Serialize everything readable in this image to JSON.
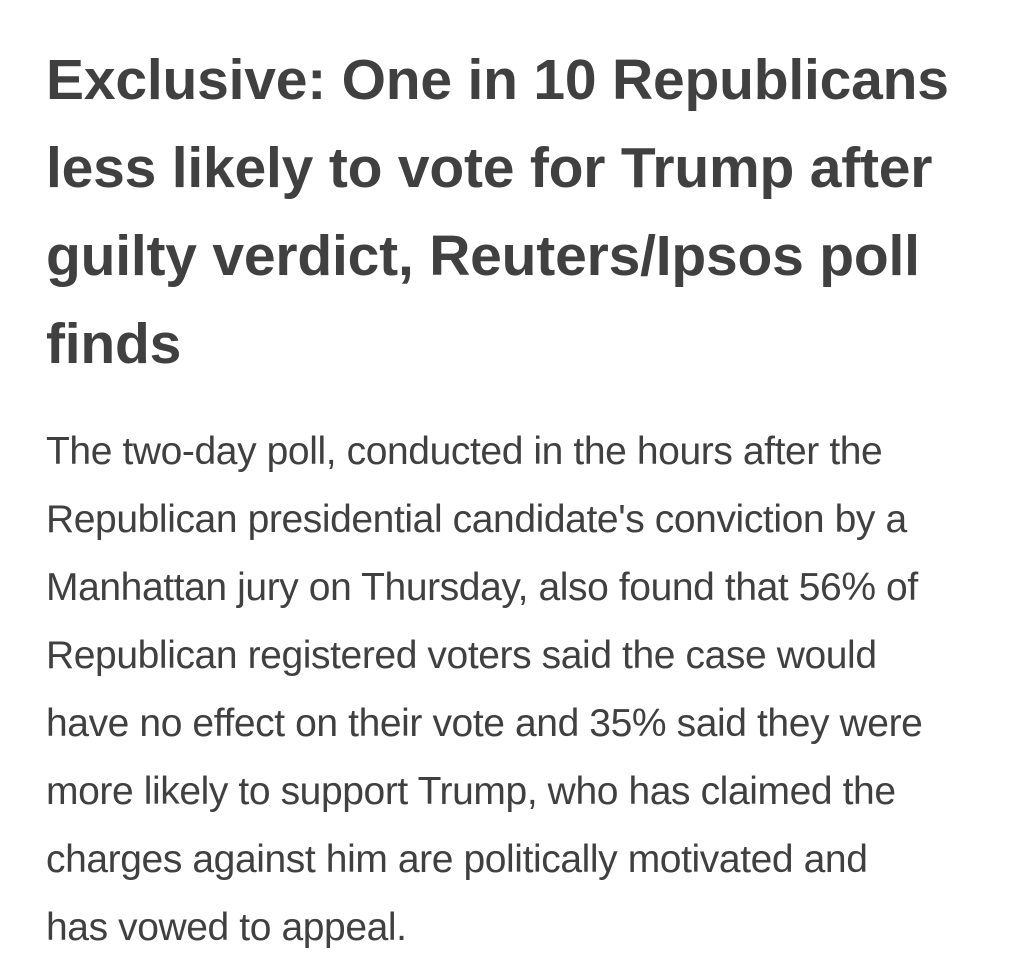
{
  "article": {
    "headline_lines": [
      "Exclusive: One in 10 Republicans",
      "less likely to vote for Trump after",
      "guilty verdict, Reuters/Ipsos poll",
      "finds"
    ],
    "body_lines": [
      "The two-day poll, conducted in the hours after the",
      "Republican presidential candidate's conviction by a",
      "Manhattan jury on Thursday, also found that 56% of",
      "Republican registered voters said the case would",
      "have no effect on their vote and 35% said they were",
      "more likely to support Trump, who has claimed the",
      "charges against him are politically motivated and",
      "has vowed to appeal."
    ]
  }
}
